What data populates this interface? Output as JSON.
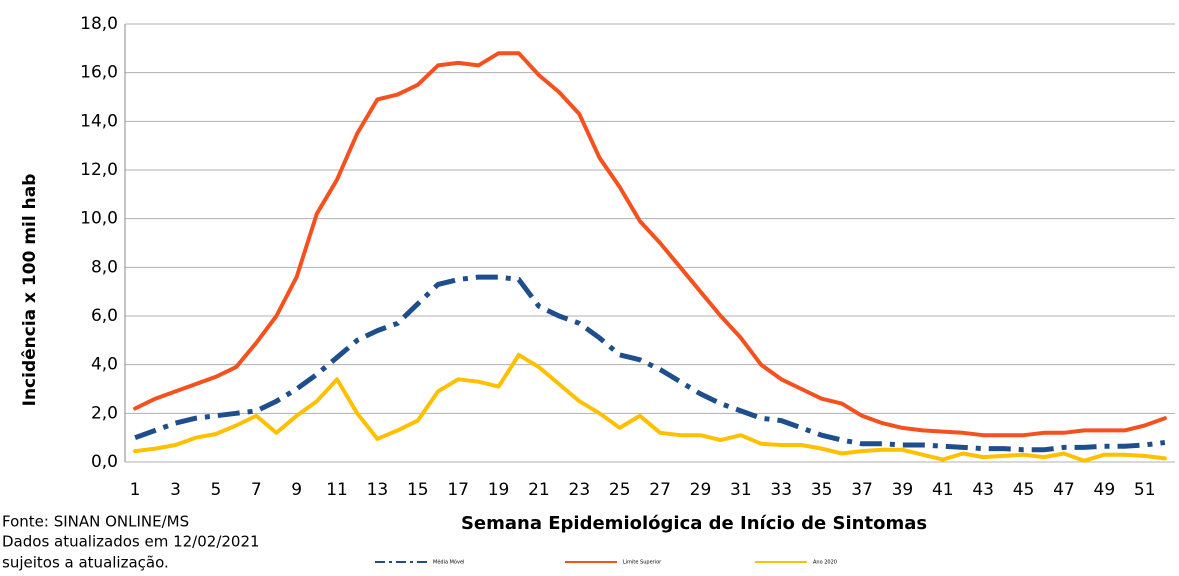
{
  "chart_data": {
    "type": "line",
    "y_label": "Incidência x 100 mil hab",
    "x_label": "Semana Epidemiológica de Início de Sintomas",
    "source": [
      "Fonte: SINAN ONLINE/MS",
      "Dados atualizados em 12/02/2021",
      "sujeitos a atualização."
    ],
    "categories": [
      1,
      null,
      3,
      null,
      5,
      null,
      7,
      null,
      9,
      null,
      11,
      null,
      13,
      null,
      15,
      null,
      17,
      null,
      19,
      null,
      21,
      null,
      23,
      null,
      25,
      null,
      27,
      null,
      29,
      null,
      31,
      null,
      33,
      null,
      35,
      null,
      37,
      null,
      39,
      null,
      41,
      null,
      43,
      null,
      45,
      null,
      47,
      null,
      49,
      null,
      51,
      null
    ],
    "ylim": [
      0,
      18
    ],
    "yticks": [
      {
        "value": 0,
        "label": "0,0"
      },
      {
        "value": 2,
        "label": "2,0"
      },
      {
        "value": 4,
        "label": "4,0"
      },
      {
        "value": 6,
        "label": "6,0"
      },
      {
        "value": 8,
        "label": "8,0"
      },
      {
        "value": 10,
        "label": "10,0"
      },
      {
        "value": 12,
        "label": "12,0"
      },
      {
        "value": 14,
        "label": "14,0"
      },
      {
        "value": 16,
        "label": "16,0"
      },
      {
        "value": 18,
        "label": "18,0"
      }
    ],
    "grid": true,
    "series": [
      {
        "name": "Média Móvel",
        "color": "#1f4e8c",
        "dash": "dashdot",
        "values": [
          1.0,
          1.3,
          1.6,
          1.8,
          1.9,
          2.0,
          2.1,
          2.5,
          3.0,
          3.6,
          4.3,
          5.0,
          5.4,
          5.7,
          6.5,
          7.3,
          7.5,
          7.6,
          7.6,
          7.5,
          6.4,
          6.0,
          5.7,
          5.1,
          4.4,
          4.2,
          3.8,
          3.3,
          2.8,
          2.4,
          2.1,
          1.8,
          1.7,
          1.4,
          1.1,
          0.9,
          0.75,
          0.75,
          0.7,
          0.7,
          0.65,
          0.6,
          0.55,
          0.55,
          0.5,
          0.5,
          0.6,
          0.6,
          0.65,
          0.65,
          0.7,
          0.8
        ]
      },
      {
        "name": "Limite Superior",
        "color": "#f4511e",
        "dash": "solid",
        "values": [
          2.2,
          2.6,
          2.9,
          3.2,
          3.5,
          3.9,
          4.9,
          6.0,
          7.6,
          10.2,
          11.6,
          13.5,
          14.9,
          15.1,
          15.5,
          16.3,
          16.4,
          16.3,
          16.8,
          16.8,
          15.9,
          15.2,
          14.3,
          12.5,
          11.3,
          9.9,
          9.0,
          8.0,
          7.0,
          6.0,
          5.1,
          4.0,
          3.4,
          3.0,
          2.6,
          2.4,
          1.9,
          1.6,
          1.4,
          1.3,
          1.25,
          1.2,
          1.1,
          1.1,
          1.1,
          1.2,
          1.2,
          1.3,
          1.3,
          1.3,
          1.5,
          1.8
        ]
      },
      {
        "name": "Ano 2020",
        "color": "#ffc000",
        "dash": "solid",
        "values": [
          0.45,
          0.55,
          0.7,
          1.0,
          1.15,
          1.5,
          1.9,
          1.2,
          1.9,
          2.5,
          3.4,
          2.0,
          0.95,
          1.3,
          1.7,
          2.9,
          3.4,
          3.3,
          3.1,
          4.4,
          3.9,
          3.2,
          2.5,
          2.0,
          1.4,
          1.9,
          1.2,
          1.1,
          1.1,
          0.9,
          1.1,
          0.75,
          0.7,
          0.7,
          0.55,
          0.35,
          0.45,
          0.5,
          0.5,
          0.3,
          0.1,
          0.35,
          0.2,
          0.25,
          0.3,
          0.2,
          0.35,
          0.05,
          0.3,
          0.3,
          0.25,
          0.15
        ]
      }
    ]
  }
}
